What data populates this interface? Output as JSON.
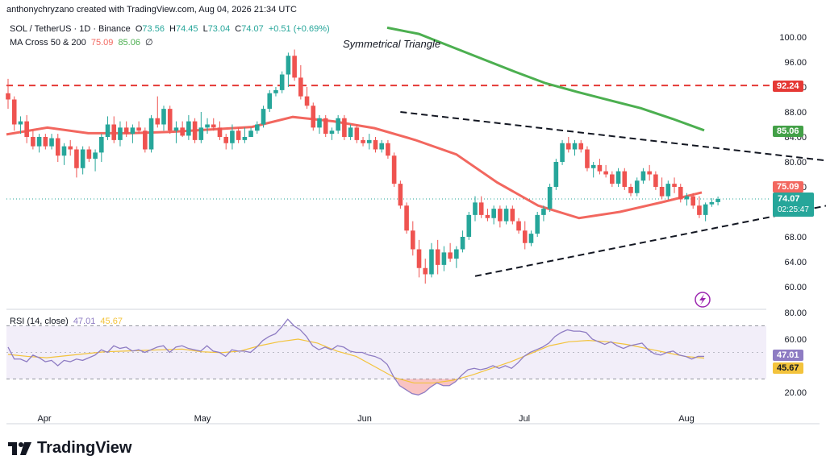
{
  "header": {
    "credit": "anthonychryzano created with TradingView.com, Aug 04, 2026 21:34 UTC",
    "symbol": "SOL / TetherUS · 1D · Binance",
    "ohlc": {
      "o_label": "O",
      "o": "73.56",
      "h_label": "H",
      "h": "74.45",
      "l_label": "L",
      "l": "73.04",
      "c_label": "C",
      "c": "74.07",
      "change": "+0.51 (+0.69%)"
    },
    "ma": {
      "label": "MA Cross 50 & 200",
      "ma50": "75.09",
      "ma200": "85.06",
      "symbol": "∅"
    },
    "rsi": {
      "label": "RSI (14, close)",
      "value": "47.01",
      "ma": "45.67"
    }
  },
  "annotation": "Symmetrical Triangle",
  "price_tags": {
    "resistance": "92.24",
    "ma200": "85.06",
    "ma50": "75.09",
    "last": "74.07",
    "countdown": "02:25:47",
    "rsi": "47.01",
    "rsi_ma": "45.67"
  },
  "logo": "TradingView",
  "colors": {
    "up": "#26a69a",
    "down": "#ef5350",
    "ma50": "#f2675f",
    "ma200": "#4caf50",
    "rsi": "#8e7cc3",
    "rsi_ma": "#f3c33c",
    "resistance": "#e53935"
  },
  "chart_data": [
    {
      "type": "candlestick",
      "title": "SOL / TetherUS · 1D · Binance",
      "x_ticks": [
        "Apr",
        "May",
        "Jun",
        "Jul",
        "Aug"
      ],
      "y_ticks": [
        "60.00",
        "64.00",
        "68.00",
        "72.00",
        "76.00",
        "80.00",
        "84.00",
        "88.00",
        "92.00",
        "96.00",
        "100.00"
      ],
      "ylim": [
        57.5,
        101.5
      ],
      "start_date": "2026-03-21",
      "end_date": "2026-08-04",
      "candles": [
        [
          91,
          93.3,
          88.5,
          90
        ],
        [
          90,
          90.5,
          85,
          86
        ],
        [
          86,
          87.3,
          84.5,
          86.5
        ],
        [
          86.5,
          87.5,
          83,
          84
        ],
        [
          84,
          85,
          82,
          82.5
        ],
        [
          82.5,
          84.5,
          81.5,
          84
        ],
        [
          84,
          84.5,
          82,
          82.5
        ],
        [
          82.5,
          84.5,
          82,
          83.8
        ],
        [
          83.8,
          84.5,
          80,
          81
        ],
        [
          81,
          83,
          79.5,
          82.5
        ],
        [
          82.5,
          83.5,
          81,
          82
        ],
        [
          82,
          82.5,
          77.5,
          79
        ],
        [
          79,
          82.5,
          78,
          82
        ],
        [
          82,
          82.5,
          80,
          80.5
        ],
        [
          80.5,
          82,
          78.5,
          81.5
        ],
        [
          81.5,
          84.5,
          80,
          84
        ],
        [
          84,
          87.3,
          83.5,
          86
        ],
        [
          86,
          87.3,
          83,
          83.5
        ],
        [
          83.5,
          86.5,
          82.5,
          85.5
        ],
        [
          85.5,
          86.5,
          84,
          84.5
        ],
        [
          84.5,
          86,
          83,
          85.5
        ],
        [
          85.5,
          86.5,
          84.5,
          85
        ],
        [
          85,
          85.5,
          81.5,
          82
        ],
        [
          82,
          87.5,
          81.5,
          87
        ],
        [
          87,
          90.5,
          85.5,
          86
        ],
        [
          86,
          89,
          85,
          88.5
        ],
        [
          88.5,
          89,
          84.5,
          85
        ],
        [
          85,
          86.5,
          83,
          85.5
        ],
        [
          85.5,
          86.5,
          84,
          84.2
        ],
        [
          84.2,
          87.5,
          83.5,
          86.5
        ],
        [
          86.5,
          87,
          83,
          83.5
        ],
        [
          83.5,
          88,
          83,
          85.5
        ],
        [
          85.5,
          87,
          84.5,
          86
        ],
        [
          86,
          87,
          85,
          85.5
        ],
        [
          85.5,
          86.5,
          83.5,
          84
        ],
        [
          84,
          84.5,
          82,
          83
        ],
        [
          83,
          86,
          82,
          85
        ],
        [
          85,
          85.5,
          83,
          83.5
        ],
        [
          83.5,
          85.5,
          83,
          84
        ],
        [
          84,
          85.5,
          84,
          85
        ],
        [
          85,
          86.5,
          84.5,
          86
        ],
        [
          86,
          89,
          85.5,
          88.5
        ],
        [
          88.5,
          91.5,
          88,
          91
        ],
        [
          91,
          92,
          90.5,
          91.5
        ],
        [
          91.5,
          94.5,
          91,
          94
        ],
        [
          94,
          97.5,
          92,
          97
        ],
        [
          97,
          98,
          93,
          93.5
        ],
        [
          93.5,
          95.5,
          90,
          90.5
        ],
        [
          90.5,
          92,
          88.5,
          89
        ],
        [
          89,
          89.5,
          85,
          85.5
        ],
        [
          85.5,
          87.5,
          84.5,
          87
        ],
        [
          87,
          87.5,
          84,
          84.5
        ],
        [
          84.5,
          85.5,
          83.5,
          85
        ],
        [
          85,
          87.5,
          84.5,
          87
        ],
        [
          87,
          87.5,
          83.5,
          84
        ],
        [
          84,
          86,
          83.5,
          85.5
        ],
        [
          85.5,
          86,
          83,
          83.5
        ],
        [
          83.5,
          84,
          82.5,
          83
        ],
        [
          83,
          84.5,
          82,
          83.5
        ],
        [
          83.5,
          84,
          81.5,
          82
        ],
        [
          82,
          83.5,
          81.5,
          83
        ],
        [
          83,
          83.5,
          80.5,
          81
        ],
        [
          81,
          81.5,
          76,
          76.5
        ],
        [
          76.5,
          77,
          72.5,
          73
        ],
        [
          73,
          73.5,
          68.5,
          69
        ],
        [
          69,
          70.5,
          65,
          66
        ],
        [
          66,
          67.5,
          61.5,
          63
        ],
        [
          63,
          64.5,
          60.5,
          62
        ],
        [
          62,
          67,
          61.5,
          66
        ],
        [
          66,
          67.5,
          62,
          63.5
        ],
        [
          63.5,
          66.5,
          62.5,
          65.5
        ],
        [
          65.5,
          67,
          64,
          64.5
        ],
        [
          64.5,
          66.5,
          63,
          66
        ],
        [
          66,
          69,
          65.5,
          68
        ],
        [
          68,
          72,
          67.5,
          71.5
        ],
        [
          71.5,
          74.5,
          70.5,
          73.5
        ],
        [
          73.5,
          74.5,
          71,
          71.5
        ],
        [
          71.5,
          72.5,
          70.5,
          71
        ],
        [
          71,
          73,
          70,
          72.5
        ],
        [
          72.5,
          73,
          69.5,
          70.5
        ],
        [
          70.5,
          73,
          70,
          72.5
        ],
        [
          72.5,
          73,
          70,
          70.5
        ],
        [
          70.5,
          71,
          68.5,
          69
        ],
        [
          69,
          70.5,
          66,
          67
        ],
        [
          67,
          69,
          66.5,
          68.5
        ],
        [
          68.5,
          72,
          68,
          71.5
        ],
        [
          71.5,
          73,
          70.5,
          72.5
        ],
        [
          72.5,
          76.5,
          72,
          76
        ],
        [
          76,
          80.5,
          75.5,
          80
        ],
        [
          80,
          83.5,
          79.5,
          83
        ],
        [
          83,
          84,
          81.5,
          82
        ],
        [
          82,
          83.5,
          81,
          83
        ],
        [
          83,
          83.5,
          81.5,
          82
        ],
        [
          82,
          82.5,
          78.5,
          79
        ],
        [
          79,
          80,
          77.5,
          79.5
        ],
        [
          79.5,
          80.5,
          78,
          78.5
        ],
        [
          78.5,
          79.5,
          77.5,
          78
        ],
        [
          78,
          78.5,
          76,
          76.5
        ],
        [
          76.5,
          79,
          76,
          78.5
        ],
        [
          78.5,
          79,
          75.5,
          76
        ],
        [
          76,
          76.5,
          74.5,
          75
        ],
        [
          75,
          77.5,
          74.5,
          77
        ],
        [
          77,
          79,
          76.5,
          78.5
        ],
        [
          78.5,
          79.5,
          77,
          78
        ],
        [
          78,
          78.5,
          75.5,
          76
        ],
        [
          76,
          77.5,
          74,
          74.5
        ],
        [
          74.5,
          77,
          74,
          76.5
        ],
        [
          76.5,
          77.5,
          75,
          76
        ],
        [
          76,
          76.5,
          73.5,
          74
        ],
        [
          74,
          75,
          73,
          74.5
        ],
        [
          74.5,
          75,
          72.5,
          73
        ],
        [
          73,
          74.5,
          71,
          71.5
        ],
        [
          71.5,
          73.5,
          70.5,
          73.2
        ],
        [
          73.2,
          74.2,
          72.8,
          73.56
        ],
        [
          73.56,
          74.45,
          73.04,
          74.07
        ]
      ],
      "series": [
        {
          "name": "MA 50",
          "values": [
            84.4,
            85.5,
            84.6,
            84.6,
            84.8,
            85.2,
            85.6,
            87.2,
            86.5,
            85.4,
            83.5,
            81.2,
            76.7,
            73.0,
            71.0,
            72.0,
            73.5,
            75.1
          ]
        },
        {
          "name": "MA 200",
          "values": [
            101.5,
            100.5,
            98.5,
            96.5,
            94.5,
            92.6,
            91.2,
            89.9,
            88.6,
            86.9,
            85.06
          ]
        }
      ],
      "lines": [
        {
          "name": "Resistance",
          "y": 92.24
        },
        {
          "name": "Triangle upper",
          "from": [
            "2026-05-23",
            88.0
          ],
          "to": [
            "2026-08-10",
            79.0
          ]
        },
        {
          "name": "Triangle lower",
          "from": [
            "2026-06-04",
            61.7
          ],
          "to": [
            "2026-08-12",
            75.5
          ]
        }
      ]
    },
    {
      "type": "line",
      "title": "RSI (14, close)",
      "y_ticks": [
        "20.00",
        "60.00",
        "80.00"
      ],
      "ylim": [
        10,
        82
      ],
      "band": [
        30,
        70
      ],
      "series": [
        {
          "name": "RSI",
          "values": [
            54,
            45,
            45,
            43,
            48,
            46,
            43,
            44,
            40,
            44,
            43,
            45,
            44,
            46,
            48,
            52,
            50,
            55,
            53,
            54,
            51,
            52,
            50,
            52,
            54,
            55,
            50,
            54,
            55,
            53,
            52,
            51,
            55,
            51,
            50,
            47,
            52,
            51,
            51,
            50,
            54,
            59,
            62,
            64,
            69,
            75,
            70,
            67,
            62,
            55,
            52,
            54,
            52,
            55,
            54,
            51,
            50,
            50,
            48,
            47,
            45,
            41,
            32,
            25,
            22,
            19,
            18,
            20,
            24,
            27,
            25,
            25,
            28,
            33,
            37,
            38,
            37,
            38,
            40,
            38,
            40,
            38,
            42,
            47,
            50,
            52,
            54,
            57,
            62,
            65,
            67,
            66,
            66,
            65,
            60,
            58,
            56,
            58,
            55,
            53,
            55,
            56,
            57,
            52,
            49,
            48,
            50,
            51,
            48,
            47,
            45,
            47,
            47.01
          ]
        },
        {
          "name": "RSI MA",
          "values": [
            48.5,
            47,
            46,
            47.5,
            49,
            50.5,
            51,
            51.5,
            52,
            52.5,
            50.5,
            49.8,
            51,
            55,
            58,
            60,
            57,
            51,
            47,
            39,
            31,
            27,
            27,
            29,
            33,
            38,
            43,
            49,
            55,
            58,
            59,
            58,
            56,
            53,
            50,
            47,
            45.67
          ]
        }
      ]
    }
  ]
}
